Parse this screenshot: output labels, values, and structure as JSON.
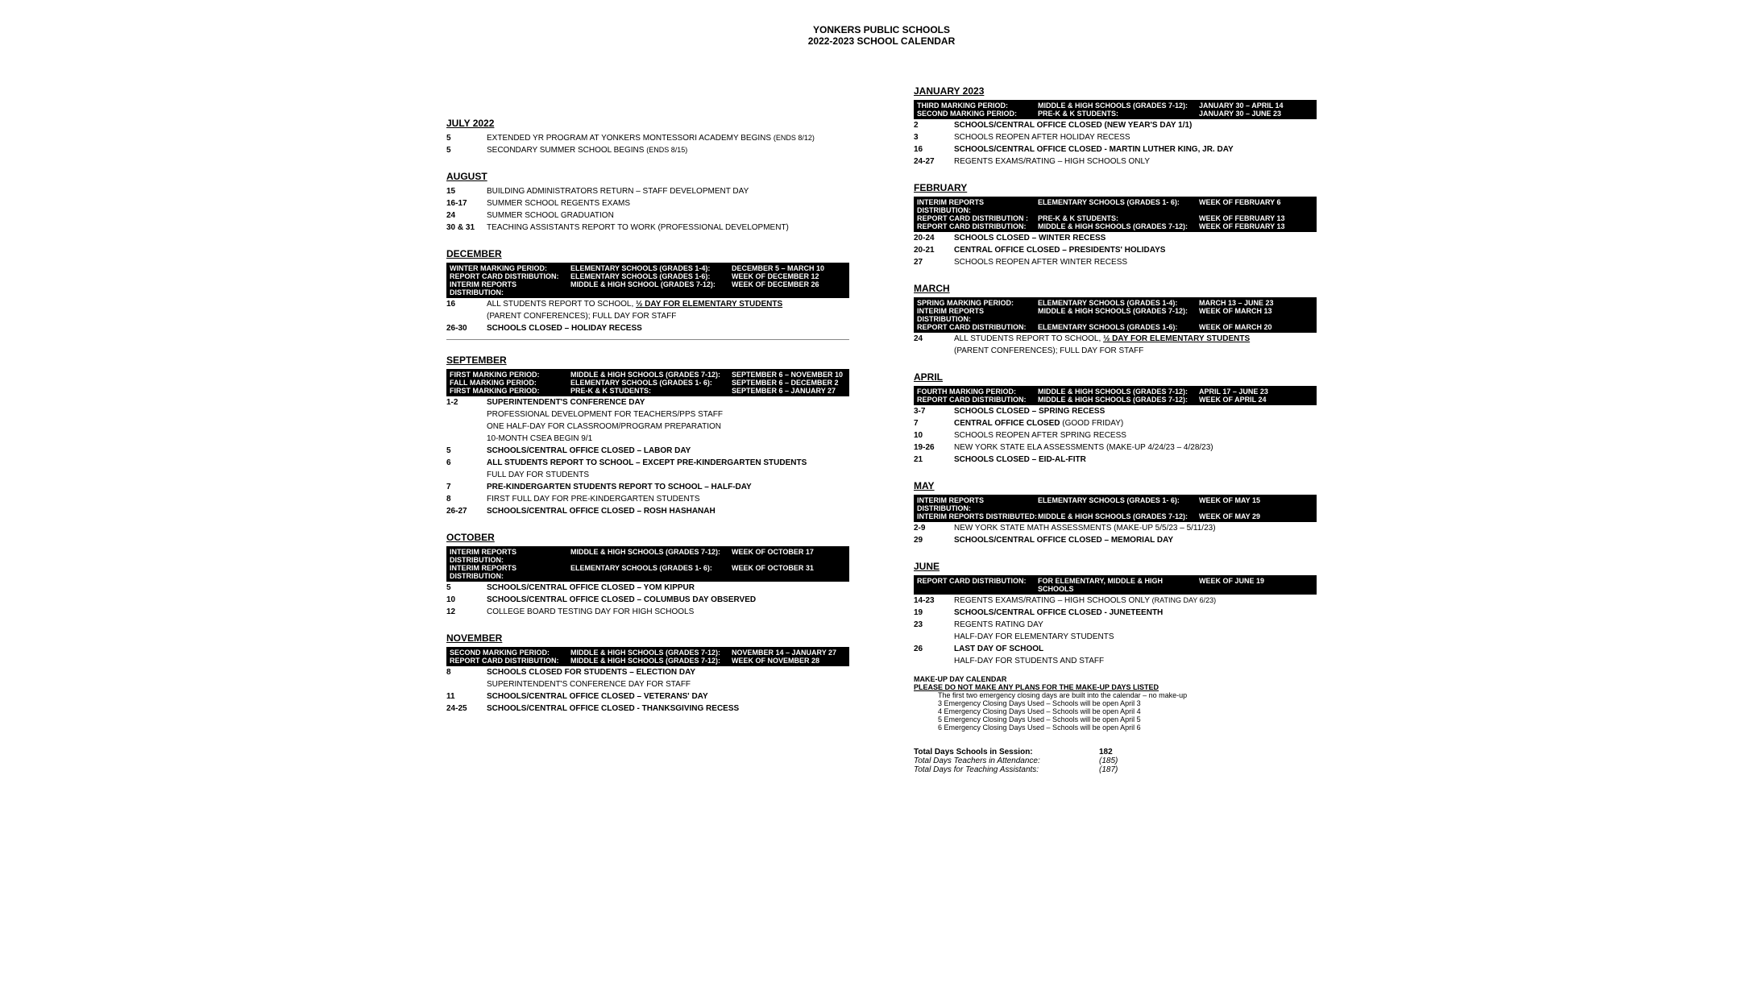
{
  "header": {
    "line1": "YONKERS PUBLIC SCHOOLS",
    "line2": "2022-2023 SCHOOL CALENDAR"
  },
  "left": [
    {
      "month": "JULY 2022",
      "events": [
        {
          "date": "5",
          "lines": [
            {
              "text": "EXTENDED YR PROGRAM AT YONKERS MONTESSORI ACADEMY BEGINS "
            },
            {
              "text": "(ENDS 8/12)",
              "small": true
            }
          ]
        },
        {
          "date": "5",
          "lines": [
            {
              "text": "SECONDARY SUMMER SCHOOL BEGINS "
            },
            {
              "text": "(ENDS 8/15)",
              "small": true
            }
          ]
        }
      ]
    },
    {
      "month": "AUGUST",
      "events": [
        {
          "date": "15",
          "lines": [
            {
              "text": "BUILDING ADMINISTRATORS RETURN – STAFF DEVELOPMENT DAY"
            }
          ]
        },
        {
          "date": "16-17",
          "lines": [
            {
              "text": "SUMMER SCHOOL REGENTS EXAMS"
            }
          ]
        },
        {
          "date": "24",
          "lines": [
            {
              "text": "SUMMER SCHOOL GRADUATION"
            }
          ]
        },
        {
          "date": "30 & 31",
          "lines": [
            {
              "text": "TEACHING ASSISTANTS REPORT TO WORK (PROFESSIONAL DEVELOPMENT)"
            }
          ]
        }
      ]
    },
    {
      "month": "DECEMBER",
      "band": [
        {
          "c1": "WINTER MARKING PERIOD:",
          "c2": "ELEMENTARY SCHOOLS (GRADES 1-4):",
          "c3": "DECEMBER 5 – MARCH 10"
        },
        {
          "c1": "REPORT CARD DISTRIBUTION:",
          "c2": "ELEMENTARY SCHOOLS (GRADES 1-6):",
          "c3": "WEEK OF DECEMBER 12"
        },
        {
          "c1": "INTERIM REPORTS DISTRIBUTION:",
          "c2": "MIDDLE & HIGH SCHOOL (GRADES 7-12):",
          "c3": "WEEK OF DECEMBER 26"
        }
      ],
      "events": [
        {
          "date": "16",
          "lines": [
            {
              "text": "ALL STUDENTS REPORT TO SCHOOL, "
            },
            {
              "text": "½ DAY FOR ELEMENTARY STUDENTS",
              "bold": true,
              "underline": true
            }
          ]
        },
        {
          "date": "",
          "lines": [
            {
              "text": "(PARENT CONFERENCES); FULL DAY FOR STAFF"
            }
          ]
        },
        {
          "date": "26-30",
          "lines": [
            {
              "text": "SCHOOLS CLOSED – HOLIDAY RECESS",
              "bold": true
            }
          ]
        }
      ],
      "dividerAfter": true
    },
    {
      "month": "SEPTEMBER",
      "band": [
        {
          "c1": "FIRST MARKING PERIOD:",
          "c2": "MIDDLE & HIGH SCHOOLS (GRADES 7-12):",
          "c3": "SEPTEMBER 6 – NOVEMBER 10"
        },
        {
          "c1": "FALL MARKING PERIOD:",
          "c2": "ELEMENTARY SCHOOLS   (GRADES 1- 6):",
          "c3": "SEPTEMBER 6 – DECEMBER 2"
        },
        {
          "c1": "FIRST MARKING PERIOD:",
          "c2": "PRE-K  & K STUDENTS:",
          "c3": "SEPTEMBER 6 – JANUARY 27"
        }
      ],
      "events": [
        {
          "date": "1-2",
          "lines": [
            {
              "text": "SUPERINTENDENT'S CONFERENCE DAY",
              "bold": true
            }
          ]
        },
        {
          "date": "",
          "lines": [
            {
              "text": "PROFESSIONAL DEVELOPMENT FOR TEACHERS/PPS STAFF"
            }
          ]
        },
        {
          "date": "",
          "lines": [
            {
              "text": "ONE HALF-DAY FOR CLASSROOM/PROGRAM PREPARATION"
            }
          ]
        },
        {
          "date": "",
          "lines": [
            {
              "text": "10-MONTH CSEA BEGIN 9/1"
            }
          ]
        },
        {
          "date": "5",
          "lines": [
            {
              "text": "SCHOOLS/CENTRAL OFFICE CLOSED – LABOR DAY",
              "bold": true
            }
          ]
        },
        {
          "date": "6",
          "lines": [
            {
              "text": "ALL STUDENTS REPORT TO SCHOOL – EXCEPT PRE-KINDERGARTEN STUDENTS",
              "bold": true
            }
          ]
        },
        {
          "date": "",
          "lines": [
            {
              "text": "FULL DAY FOR STUDENTS"
            }
          ]
        },
        {
          "date": "7",
          "lines": [
            {
              "text": "PRE-KINDERGARTEN STUDENTS REPORT TO SCHOOL – HALF-DAY",
              "bold": true
            }
          ]
        },
        {
          "date": "8",
          "lines": [
            {
              "text": "FIRST FULL DAY FOR PRE-KINDERGARTEN STUDENTS"
            }
          ]
        },
        {
          "date": "26-27",
          "lines": [
            {
              "text": "SCHOOLS/CENTRAL OFFICE CLOSED – ROSH HASHANAH",
              "bold": true
            }
          ]
        }
      ]
    },
    {
      "month": "OCTOBER",
      "band": [
        {
          "c1": "INTERIM REPORTS DISTRIBUTION:",
          "c2": "MIDDLE & HIGH SCHOOLS (GRADES 7-12):",
          "c3": "WEEK OF OCTOBER 17"
        },
        {
          "c1": "INTERIM REPORTS DISTRIBUTION:",
          "c2": "ELEMENTARY SCHOOLS   (GRADES 1- 6):",
          "c3": "WEEK OF OCTOBER 31"
        }
      ],
      "events": [
        {
          "date": "5",
          "lines": [
            {
              "text": "SCHOOLS/CENTRAL OFFICE CLOSED – YOM KIPPUR",
              "bold": true
            }
          ]
        },
        {
          "date": "10",
          "lines": [
            {
              "text": "SCHOOLS/CENTRAL OFFICE CLOSED – COLUMBUS DAY OBSERVED",
              "bold": true
            }
          ]
        },
        {
          "date": "12",
          "lines": [
            {
              "text": "COLLEGE BOARD TESTING DAY FOR HIGH SCHOOLS"
            }
          ]
        }
      ]
    },
    {
      "month": "NOVEMBER",
      "band": [
        {
          "c1": "SECOND MARKING PERIOD:",
          "c2": "MIDDLE & HIGH SCHOOLS (GRADES 7-12):",
          "c3": "NOVEMBER 14 – JANUARY 27"
        },
        {
          "c1": "REPORT CARD DISTRIBUTION:",
          "c2": "MIDDLE & HIGH SCHOOLS (GRADES 7-12):",
          "c3": "WEEK OF NOVEMBER 28"
        }
      ],
      "events": [
        {
          "date": "8",
          "lines": [
            {
              "text": "SCHOOLS CLOSED FOR STUDENTS – ELECTION DAY",
              "bold": true
            }
          ]
        },
        {
          "date": "",
          "lines": [
            {
              "text": "SUPERINTENDENT'S CONFERENCE DAY FOR STAFF"
            }
          ]
        },
        {
          "date": "11",
          "lines": [
            {
              "text": "SCHOOLS/CENTRAL OFFICE CLOSED – VETERANS' DAY",
              "bold": true
            }
          ]
        },
        {
          "date": "24-25",
          "lines": [
            {
              "text": "SCHOOLS/CENTRAL OFFICE CLOSED - THANKSGIVING RECESS",
              "bold": true
            }
          ]
        }
      ]
    }
  ],
  "right": [
    {
      "month": "JANUARY 2023",
      "band": [
        {
          "c1": "THIRD MARKING PERIOD:",
          "c2": "MIDDLE & HIGH SCHOOLS (GRADES 7-12):",
          "c3": "JANUARY 30 – APRIL 14"
        },
        {
          "c1": "SECOND MARKING PERIOD:",
          "c2": "PRE-K & K STUDENTS:",
          "c3": "JANUARY 30 – JUNE 23"
        }
      ],
      "events": [
        {
          "date": "2",
          "lines": [
            {
              "text": "SCHOOLS/CENTRAL OFFICE CLOSED (NEW YEAR'S DAY 1/1)",
              "bold": true
            }
          ]
        },
        {
          "date": "3",
          "lines": [
            {
              "text": "SCHOOLS REOPEN AFTER HOLIDAY RECESS"
            }
          ]
        },
        {
          "date": "16",
          "lines": [
            {
              "text": "SCHOOLS/CENTRAL OFFICE CLOSED - MARTIN LUTHER KING, JR. DAY",
              "bold": true
            }
          ]
        },
        {
          "date": "24-27",
          "lines": [
            {
              "text": "REGENTS EXAMS/RATING – HIGH SCHOOLS ONLY"
            }
          ]
        }
      ]
    },
    {
      "month": "FEBRUARY",
      "band": [
        {
          "c1": "INTERIM REPORTS DISTRIBUTION:",
          "c2": "ELEMENTARY SCHOOLS   (GRADES 1- 6):",
          "c3": "WEEK OF FEBRUARY 6"
        },
        {
          "c1": "REPORT CARD DISTRIBUTION :",
          "c2": "PRE-K & K STUDENTS:",
          "c3": "WEEK OF FEBRUARY 13"
        },
        {
          "c1": "REPORT CARD DISTRIBUTION:",
          "c2": "MIDDLE & HIGH SCHOOLS (GRADES 7-12):",
          "c3": "WEEK OF FEBRUARY 13"
        }
      ],
      "events": [
        {
          "date": "20-24",
          "lines": [
            {
              "text": "SCHOOLS CLOSED – WINTER RECESS",
              "bold": true
            }
          ]
        },
        {
          "date": "20-21",
          "lines": [
            {
              "text": "CENTRAL OFFICE CLOSED – PRESIDENTS' HOLIDAYS",
              "bold": true
            }
          ]
        },
        {
          "date": "27",
          "lines": [
            {
              "text": "SCHOOLS REOPEN AFTER WINTER RECESS"
            }
          ]
        }
      ]
    },
    {
      "month": "MARCH",
      "band": [
        {
          "c1": "SPRING MARKING PERIOD:",
          "c2": "ELEMENTARY SCHOOLS   (GRADES 1-4):",
          "c3": "MARCH 13 – JUNE 23"
        },
        {
          "c1": "INTERIM REPORTS DISTRIBUTION:",
          "c2": "MIDDLE & HIGH SCHOOLS (GRADES 7-12):",
          "c3": "WEEK OF MARCH 13"
        },
        {
          "c1": "REPORT CARD DISTRIBUTION:",
          "c2": "ELEMENTARY SCHOOLS   (GRADES 1-6):",
          "c3": "WEEK OF MARCH 20"
        }
      ],
      "events": [
        {
          "date": "24",
          "lines": [
            {
              "text": "ALL STUDENTS REPORT TO SCHOOL, "
            },
            {
              "text": "½ DAY FOR ELEMENTARY STUDENTS",
              "bold": true,
              "underline": true
            }
          ]
        },
        {
          "date": "",
          "lines": [
            {
              "text": "(PARENT CONFERENCES); FULL DAY FOR STAFF"
            }
          ]
        }
      ]
    },
    {
      "month": "APRIL",
      "band": [
        {
          "c1": "FOURTH MARKING PERIOD:",
          "c2": "MIDDLE & HIGH SCHOOLS (GRADES 7-12):",
          "c3": "APRIL 17 – JUNE 23"
        },
        {
          "c1": "REPORT CARD DISTRIBUTION:",
          "c2": "MIDDLE & HIGH SCHOOLS (GRADES 7-12):",
          "c3": "WEEK OF APRIL 24"
        }
      ],
      "events": [
        {
          "date": "3-7",
          "lines": [
            {
              "text": "SCHOOLS CLOSED  – SPRING RECESS",
              "bold": true
            }
          ]
        },
        {
          "date": "7",
          "lines": [
            {
              "text": "CENTRAL OFFICE CLOSED ",
              "bold": true
            },
            {
              "text": "(GOOD FRIDAY)"
            }
          ]
        },
        {
          "date": "10",
          "lines": [
            {
              "text": "SCHOOLS REOPEN AFTER SPRING RECESS"
            }
          ]
        },
        {
          "date": "19-26",
          "lines": [
            {
              "text": "NEW YORK STATE ELA ASSESSMENTS (MAKE-UP 4/24/23 – 4/28/23)"
            }
          ]
        },
        {
          "date": "21",
          "lines": [
            {
              "text": "SCHOOLS CLOSED – EID-AL-FITR",
              "bold": true
            }
          ]
        }
      ]
    },
    {
      "month": "MAY",
      "band": [
        {
          "c1": "INTERIM REPORTS DISTRIBUTION:",
          "c2": "ELEMENTARY SCHOOLS   (GRADES 1- 6):",
          "c3": "WEEK OF MAY 15"
        },
        {
          "c1": "INTERIM REPORTS DISTRIBUTED:",
          "c2": "MIDDLE & HIGH SCHOOLS (GRADES 7-12):",
          "c3": "WEEK OF MAY 29"
        }
      ],
      "events": [
        {
          "date": "2-9",
          "lines": [
            {
              "text": "NEW YORK STATE MATH ASSESSMENTS (MAKE-UP 5/5/23 – 5/11/23)"
            }
          ]
        },
        {
          "date": "29",
          "lines": [
            {
              "text": "SCHOOLS/CENTRAL OFFICE CLOSED  – MEMORIAL DAY",
              "bold": true
            }
          ]
        }
      ]
    },
    {
      "month": "JUNE",
      "band": [
        {
          "c1": "REPORT CARD DISTRIBUTION:",
          "c2": "FOR ELEMENTARY, MIDDLE & HIGH SCHOOLS",
          "c3": "WEEK OF JUNE 19"
        }
      ],
      "events": [
        {
          "date": "14-23",
          "lines": [
            {
              "text": "REGENTS EXAMS/RATING – HIGH SCHOOLS ONLY "
            },
            {
              "text": "(RATING DAY 6/23)",
              "small": true
            }
          ]
        },
        {
          "date": "19",
          "lines": [
            {
              "text": "SCHOOLS/CENTRAL OFFICE CLOSED - JUNETEENTH",
              "bold": true
            }
          ]
        },
        {
          "date": "23",
          "lines": [
            {
              "text": "REGENTS RATING DAY"
            }
          ]
        },
        {
          "date": "",
          "lines": [
            {
              "text": "HALF-DAY FOR ELEMENTARY STUDENTS"
            }
          ]
        },
        {
          "date": "26",
          "lines": [
            {
              "text": "LAST DAY OF SCHOOL",
              "bold": true
            }
          ]
        },
        {
          "date": "",
          "lines": [
            {
              "text": "HALF-DAY FOR STUDENTS AND STAFF"
            }
          ]
        }
      ]
    }
  ],
  "makeup": {
    "title": "MAKE-UP DAY CALENDAR",
    "warning": "PLEASE DO NOT MAKE ANY PLANS FOR THE MAKE-UP DAYS LISTED",
    "lines": [
      "The first two emergency closing days are built into the calendar – no make-up",
      "3 Emergency Closing Days Used – Schools will be open April 3",
      "4 Emergency Closing Days Used – Schools will be open April 4",
      "5 Emergency Closing Days Used – Schools will be open April 5",
      "6 Emergency Closing Days Used – Schools will be open April 6"
    ]
  },
  "totals": {
    "rows": [
      {
        "label": "Total Days Schools in Session:",
        "value": "182",
        "bold": true
      },
      {
        "label": "Total Days Teachers in Attendance:",
        "value": "(185)",
        "italic": true
      },
      {
        "label": "Total Days for Teaching Assistants:",
        "value": "(187)",
        "italic": true
      }
    ]
  }
}
